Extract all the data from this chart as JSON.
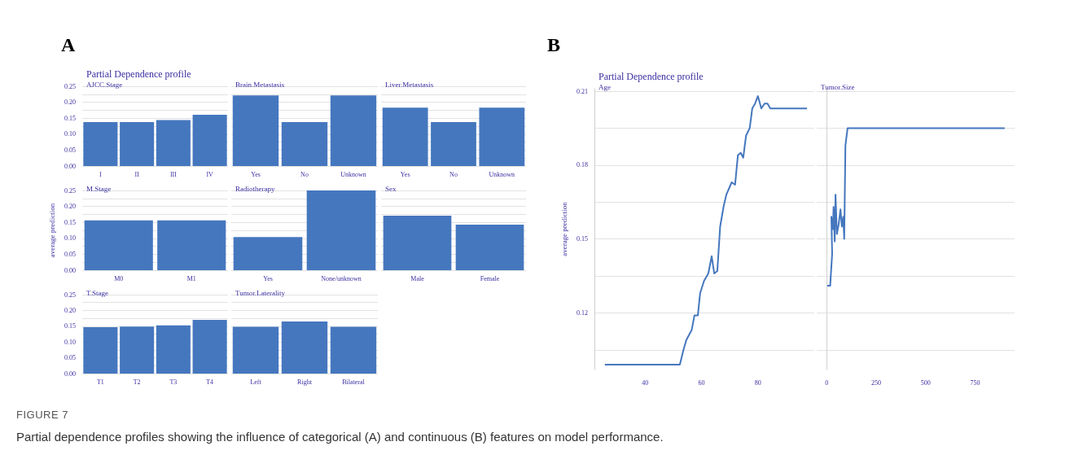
{
  "chart_data": [
    {
      "type": "bar",
      "title": "Partial Dependence profile",
      "subtitle": "AJCC.Stage",
      "annotations": [
        "A",
        "FIGURE 7",
        "Partial dependence profiles showing the influence of categorical (A) and continuous (B) features on model performance."
      ],
      "categories": [
        "I",
        "II",
        "III",
        "IV"
      ],
      "values": [
        0.138,
        0.138,
        0.144,
        0.161
      ],
      "color": "#4577be",
      "ylim": [
        0,
        0.25
      ],
      "yticks": [
        {
          "value": 0,
          "label": "0.00"
        },
        {
          "value": 0.025,
          "label": null
        },
        {
          "value": 0.05,
          "label": "0.05"
        },
        {
          "value": 0.075,
          "label": null
        },
        {
          "value": 0.1,
          "label": "0.10"
        },
        {
          "value": 0.125,
          "label": null
        },
        {
          "value": 0.15,
          "label": "0.15"
        },
        {
          "value": 0.175,
          "label": null
        },
        {
          "value": 0.2,
          "label": "0.20"
        },
        {
          "value": 0.225,
          "label": null
        },
        {
          "value": 0.25,
          "label": "0.25"
        }
      ],
      "grid": "y"
    },
    {
      "type": "bar",
      "subtitle": "Brain.Metastasis",
      "categories": [
        "Yes",
        "No",
        "Unknown"
      ],
      "values": [
        0.221,
        0.138,
        0.221
      ],
      "color": "#4577be",
      "ylim": [
        0,
        0.25
      ],
      "yticks": [
        0,
        0.025,
        0.05,
        0.075,
        0.1,
        0.125,
        0.15,
        0.175,
        0.2,
        0.225,
        0.25
      ],
      "grid": "y",
      "tick_labels": "x"
    },
    {
      "type": "bar",
      "subtitle": "Liver.Metastasis",
      "categories": [
        "Yes",
        "No",
        "Unknown"
      ],
      "values": [
        0.183,
        0.138,
        0.183
      ],
      "color": "#4577be",
      "ylim": [
        0,
        0.25
      ],
      "yticks": [
        0,
        0.025,
        0.05,
        0.075,
        0.1,
        0.125,
        0.15,
        0.175,
        0.2,
        0.225,
        0.25
      ],
      "grid": "y",
      "tick_labels": "x"
    },
    {
      "type": "bar",
      "subtitle": "M.Stage",
      "ylabel": "average prediction",
      "categories": [
        "M0",
        "M1"
      ],
      "values": [
        0.156,
        0.156
      ],
      "color": "#4577be",
      "ylim": [
        0,
        0.25
      ],
      "yticks": [
        {
          "value": 0,
          "label": "0.00"
        },
        {
          "value": 0.025,
          "label": null
        },
        {
          "value": 0.05,
          "label": "0.05"
        },
        {
          "value": 0.075,
          "label": null
        },
        {
          "value": 0.1,
          "label": "0.10"
        },
        {
          "value": 0.125,
          "label": null
        },
        {
          "value": 0.15,
          "label": "0.15"
        },
        {
          "value": 0.175,
          "label": null
        },
        {
          "value": 0.2,
          "label": "0.20"
        },
        {
          "value": 0.225,
          "label": null
        },
        {
          "value": 0.25,
          "label": "0.25"
        }
      ],
      "grid": "y"
    },
    {
      "type": "bar",
      "subtitle": "Radiotherapy",
      "categories": [
        "Yes",
        "None/unknown"
      ],
      "values": [
        0.104,
        0.25
      ],
      "color": "#4577be",
      "ylim": [
        0,
        0.25
      ],
      "yticks": [
        0,
        0.025,
        0.05,
        0.075,
        0.1,
        0.125,
        0.15,
        0.175,
        0.2,
        0.225,
        0.25
      ],
      "grid": "y",
      "tick_labels": "x"
    },
    {
      "type": "bar",
      "subtitle": "Sex",
      "categories": [
        "Male",
        "Female"
      ],
      "values": [
        0.171,
        0.143
      ],
      "color": "#4577be",
      "ylim": [
        0,
        0.25
      ],
      "yticks": [
        0,
        0.025,
        0.05,
        0.075,
        0.1,
        0.125,
        0.15,
        0.175,
        0.2,
        0.225,
        0.25
      ],
      "grid": "y",
      "tick_labels": "x"
    },
    {
      "type": "bar",
      "subtitle": "T.Stage",
      "categories": [
        "T1",
        "T2",
        "T3",
        "T4"
      ],
      "values": [
        0.147,
        0.149,
        0.153,
        0.17
      ],
      "color": "#4577be",
      "ylim": [
        0,
        0.25
      ],
      "yticks": [
        {
          "value": 0,
          "label": "0.00"
        },
        {
          "value": 0.025,
          "label": null
        },
        {
          "value": 0.05,
          "label": "0.05"
        },
        {
          "value": 0.075,
          "label": null
        },
        {
          "value": 0.1,
          "label": "0.10"
        },
        {
          "value": 0.125,
          "label": null
        },
        {
          "value": 0.15,
          "label": "0.15"
        },
        {
          "value": 0.175,
          "label": null
        },
        {
          "value": 0.2,
          "label": "0.20"
        },
        {
          "value": 0.225,
          "label": null
        },
        {
          "value": 0.25,
          "label": "0.25"
        }
      ],
      "grid": "y"
    },
    {
      "type": "bar",
      "subtitle": "Tumor.Laterality",
      "categories": [
        "Left",
        "Right",
        "Bilateral"
      ],
      "values": [
        0.148,
        0.165,
        0.148
      ],
      "color": "#4577be",
      "ylim": [
        0,
        0.25
      ],
      "yticks": [
        0,
        0.025,
        0.05,
        0.075,
        0.1,
        0.125,
        0.15,
        0.175,
        0.2,
        0.225,
        0.25
      ],
      "grid": "y",
      "tick_labels": "x"
    },
    {
      "type": "line",
      "title": "Partial Dependence profile",
      "subtitle": "Age",
      "ylabel": "average prediction",
      "annotations": [
        "B"
      ],
      "color": "#4577be",
      "marker": "none",
      "grid": "y",
      "x": [
        25.7,
        52.3,
        53.6,
        54.6,
        56.5,
        57.5,
        58.7,
        59.5,
        60.9,
        62.4,
        63.6,
        64.5,
        65.6,
        66.6,
        67.8,
        68.8,
        70.7,
        71.9,
        72.9,
        73.9,
        74.8,
        75.8,
        77.1,
        78.0,
        79.0,
        80.0,
        81.2,
        82.4,
        83.4,
        84.4,
        97.4
      ],
      "values": [
        0.099,
        0.099,
        0.105,
        0.109,
        0.113,
        0.119,
        0.119,
        0.128,
        0.133,
        0.136,
        0.143,
        0.136,
        0.137,
        0.155,
        0.163,
        0.168,
        0.173,
        0.172,
        0.184,
        0.185,
        0.183,
        0.192,
        0.195,
        0.203,
        0.205,
        0.208,
        0.203,
        0.205,
        0.205,
        0.203,
        0.203
      ],
      "xlim": [
        22,
        100
      ],
      "xticks": [
        40,
        60,
        80
      ],
      "ylim": [
        0.097,
        0.211
      ],
      "yticks": [
        {
          "value": 0.105,
          "label": null
        },
        0.12,
        {
          "value": 0.135,
          "label": null
        },
        0.15,
        {
          "value": 0.165,
          "label": null
        },
        0.18,
        {
          "value": 0.195,
          "label": null
        },
        0.21
      ]
    },
    {
      "type": "line",
      "subtitle": "Tumor.Size",
      "color": "#4577be",
      "marker": "none",
      "grid": "y",
      "tick_labels": "x",
      "x": [
        3,
        18,
        28,
        24,
        32,
        35,
        41,
        45,
        52,
        61,
        70,
        77,
        84,
        89,
        95,
        106,
        900
      ],
      "values": [
        0.131,
        0.131,
        0.144,
        0.159,
        0.154,
        0.163,
        0.149,
        0.168,
        0.152,
        0.156,
        0.162,
        0.155,
        0.159,
        0.15,
        0.188,
        0.195,
        0.195
      ],
      "xlim": [
        -50,
        950
      ],
      "xticks": [
        0,
        250,
        500,
        750
      ],
      "ylim": [
        0.097,
        0.211
      ],
      "yticks": [
        0.105,
        0.12,
        0.135,
        0.15,
        0.165,
        0.18,
        0.195,
        0.21
      ]
    }
  ]
}
